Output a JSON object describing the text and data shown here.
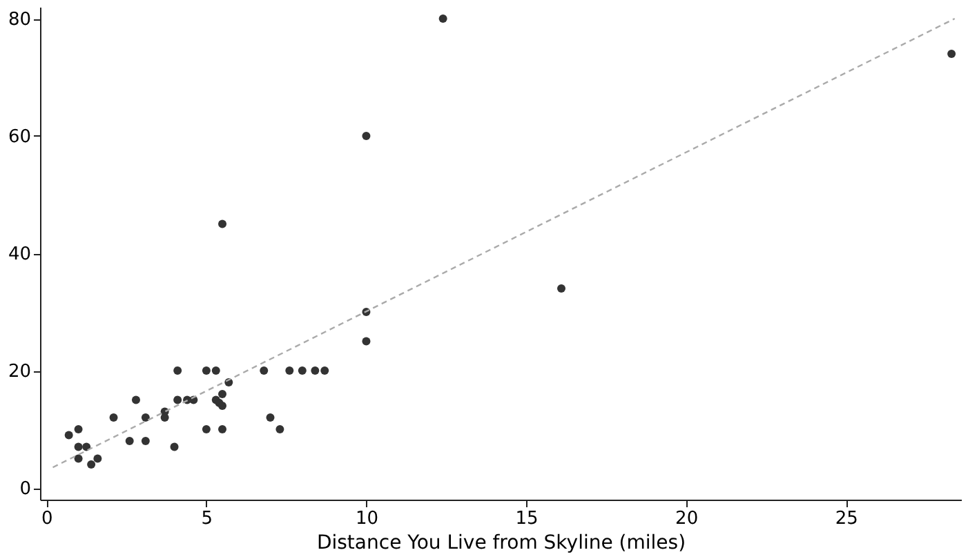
{
  "chart_data": {
    "type": "scatter",
    "xlabel": "Distance You Live from Skyline (miles)",
    "xlim": [
      -0.2,
      28.6
    ],
    "ylim": [
      -2,
      82
    ],
    "xticks": [
      0,
      5,
      10,
      15,
      20,
      25
    ],
    "yticks": [
      0,
      20,
      40,
      60,
      80
    ],
    "grid": false,
    "marker": "circle",
    "series": [
      {
        "color": "#333333",
        "x": [
          0.7,
          1.0,
          1.0,
          1.25,
          1.0,
          1.4,
          1.6,
          2.1,
          2.6,
          2.8,
          3.1,
          3.1,
          3.7,
          3.7,
          4.0,
          4.1,
          4.1,
          4.4,
          4.6,
          5.0,
          5.3,
          5.0,
          5.3,
          5.4,
          5.5,
          5.5,
          5.5,
          5.7,
          6.8,
          7.0,
          7.3,
          7.6,
          8.0,
          8.4,
          8.7,
          10,
          10,
          5.5,
          10,
          12.4,
          16.1,
          28.3
        ],
        "values": [
          9,
          10,
          7,
          7,
          5,
          4,
          5,
          12,
          8,
          15,
          12,
          8,
          13,
          12,
          7,
          20,
          15,
          15,
          15,
          20,
          20,
          10,
          15,
          14.5,
          16,
          14,
          10,
          18,
          20,
          12,
          10,
          20,
          20,
          20,
          20,
          30,
          25,
          45,
          60,
          80,
          34,
          74
        ]
      },
      {
        "type": "line",
        "color": "#aaaaaa",
        "line_style": "dashed",
        "marker": "none",
        "x": [
          0.2,
          28.4
        ],
        "values": [
          3.5,
          80
        ]
      }
    ]
  }
}
